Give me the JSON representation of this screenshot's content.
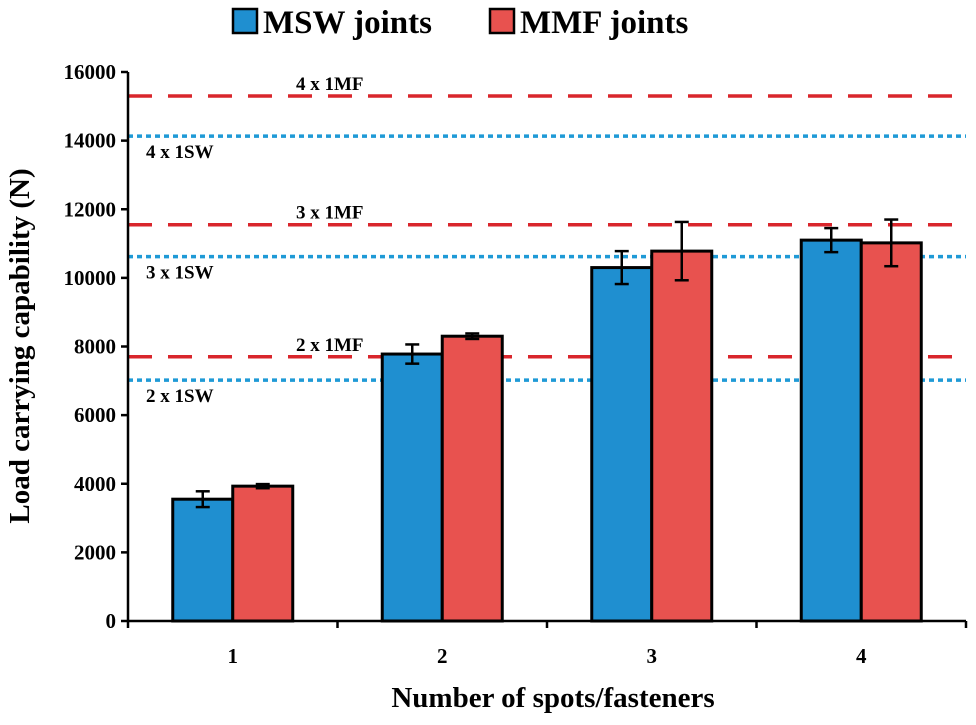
{
  "chart_data": {
    "type": "bar",
    "title": "",
    "xlabel": "Number of spots/fasteners",
    "ylabel": "Load carrying capability (N)",
    "categories": [
      "1",
      "2",
      "3",
      "4"
    ],
    "ylim": [
      0,
      16000
    ],
    "yticks": [
      0,
      2000,
      4000,
      6000,
      8000,
      10000,
      12000,
      14000,
      16000
    ],
    "ytick_labels": [
      "0",
      "2000",
      "4000",
      "6000",
      "8000",
      "10000",
      "12000",
      "14000",
      "16000"
    ],
    "grid": false,
    "legend_position": "top",
    "series": [
      {
        "name": "MSW joints",
        "color": "#1f8fd0",
        "values": [
          3550,
          7780,
          10300,
          11100
        ],
        "error": [
          230,
          280,
          480,
          350
        ]
      },
      {
        "name": "MMF joints",
        "color": "#e8524f",
        "values": [
          3930,
          8300,
          10780,
          11020
        ],
        "error": [
          60,
          80,
          850,
          680
        ]
      }
    ],
    "reference_lines": [
      {
        "label": "4 x 1MF",
        "value": 15300,
        "style": "dashed",
        "color": "#d9262c"
      },
      {
        "label": "4 x 1SW",
        "value": 14130,
        "style": "dotted",
        "color": "#1f9ad6"
      },
      {
        "label": "3 x 1MF",
        "value": 11550,
        "style": "dashed",
        "color": "#d9262c"
      },
      {
        "label": "3 x 1SW",
        "value": 10620,
        "style": "dotted",
        "color": "#1f9ad6"
      },
      {
        "label": "2 x 1MF",
        "value": 7700,
        "style": "dashed",
        "color": "#d9262c"
      },
      {
        "label": "2 x 1SW",
        "value": 7020,
        "style": "dotted",
        "color": "#1f9ad6"
      }
    ]
  }
}
